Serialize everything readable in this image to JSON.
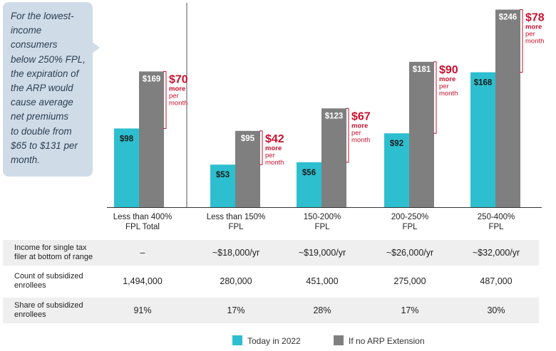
{
  "callout": {
    "text": "For the lowest-\nincome\nconsumers\nbelow 250% FPL,\nthe expiration of\nthe ARP would\ncause average\nnet premiums\nto double from\n$65 to $131 per\nmonth."
  },
  "colors": {
    "today": "#2dbfcf",
    "no_arp": "#7f7f7f",
    "accent": "#c8102e",
    "table_shade": "#efefef"
  },
  "chart_data": {
    "type": "bar",
    "categories": [
      "Less than 400%\nFPL Total",
      "Less than 150%\nFPL",
      "150-200%\nFPL",
      "200-250%\nFPL",
      "250-400%\nFPL"
    ],
    "series": [
      {
        "name": "Today in 2022",
        "values": [
          98,
          53,
          56,
          92,
          168
        ],
        "labels": [
          "$98",
          "$53",
          "$56",
          "$92",
          "$168"
        ]
      },
      {
        "name": "If no ARP Extension",
        "values": [
          169,
          95,
          123,
          181,
          246
        ],
        "labels": [
          "$169",
          "$95",
          "$123",
          "$181",
          "$246"
        ]
      }
    ],
    "differences": [
      {
        "amount": "$70",
        "more": "more",
        "per": "per",
        "month": "month"
      },
      {
        "amount": "$42",
        "more": "more",
        "per": "per",
        "month": "month"
      },
      {
        "amount": "$67",
        "more": "more",
        "per": "per",
        "month": "month"
      },
      {
        "amount": "$90",
        "more": "more",
        "per": "per",
        "month": "month"
      },
      {
        "amount": "$78",
        "more": "more",
        "per": "per",
        "month": "month"
      }
    ],
    "ylim": [
      0,
      255
    ],
    "grid": false,
    "legend": "bottom"
  },
  "table": {
    "rows": [
      {
        "label": "Income for single tax\nfiler at bottom of range",
        "values": [
          "–",
          "~$18,000/yr",
          "~$19,000/yr",
          "~$26,000/yr",
          "~$32,000/yr"
        ]
      },
      {
        "label": "Count of subsidized\nenrollees",
        "values": [
          "1,494,000",
          "280,000",
          "451,000",
          "275,000",
          "487,000"
        ]
      },
      {
        "label": "Share of subsidized\nenrollees",
        "values": [
          "91%",
          "17%",
          "28%",
          "17%",
          "30%"
        ]
      }
    ]
  },
  "legend": {
    "items": [
      {
        "label": "Today in 2022"
      },
      {
        "label": "If no ARP Extension"
      }
    ]
  }
}
